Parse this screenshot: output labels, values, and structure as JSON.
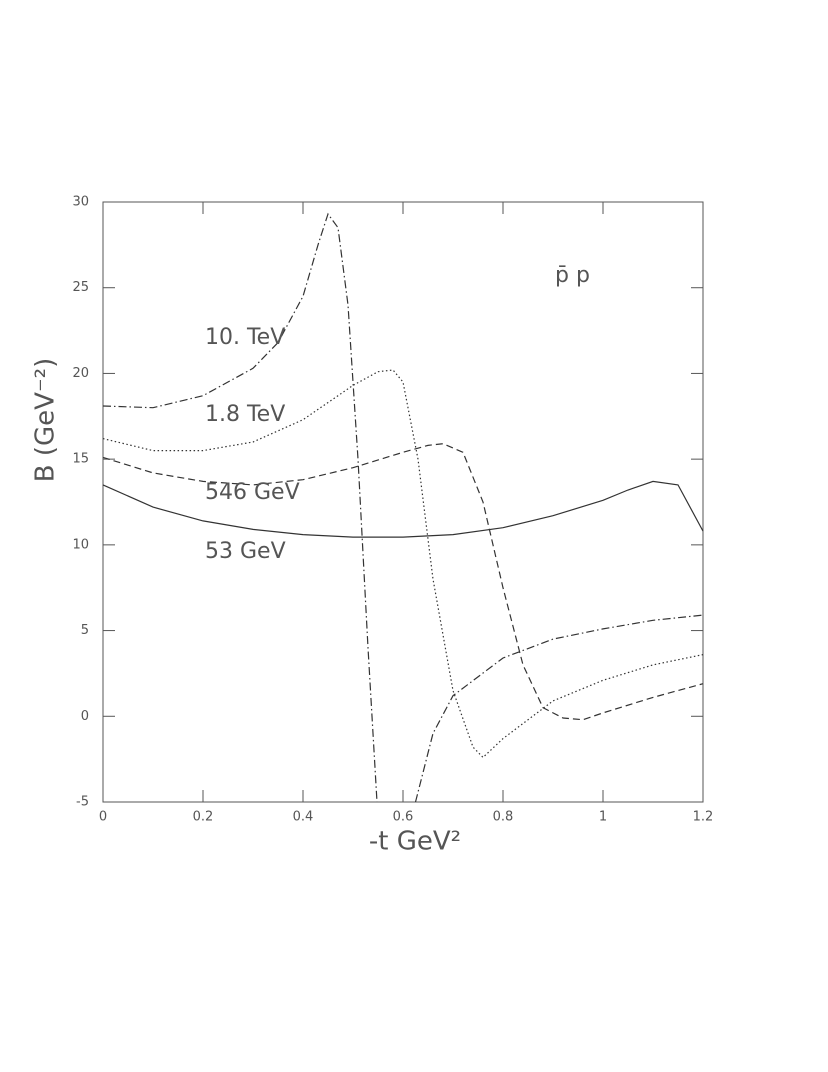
{
  "chart_data": {
    "type": "line",
    "xlabel": "-t  GeV²",
    "ylabel": "B (GeV⁻²)",
    "annotation": "p̄ p",
    "xlim": [
      0,
      1.2
    ],
    "ylim": [
      -5,
      30
    ],
    "xticks": [
      0,
      0.2,
      0.4,
      0.6,
      0.8,
      1,
      1.2
    ],
    "yticks": [
      -5,
      0,
      5,
      10,
      15,
      20,
      25,
      30
    ],
    "series": [
      {
        "name": "53 GeV",
        "color": "#333",
        "dash": "solid",
        "x": [
          0,
          0.1,
          0.2,
          0.3,
          0.4,
          0.5,
          0.6,
          0.7,
          0.8,
          0.9,
          1.0,
          1.05,
          1.1,
          1.15,
          1.2
        ],
        "values": [
          13.5,
          12.2,
          11.4,
          10.9,
          10.6,
          10.45,
          10.45,
          10.6,
          11.0,
          11.7,
          12.6,
          13.2,
          13.7,
          13.5,
          10.8
        ]
      },
      {
        "name": "546 GeV",
        "color": "#333",
        "dash": "dashed",
        "x": [
          0,
          0.1,
          0.2,
          0.3,
          0.4,
          0.5,
          0.6,
          0.65,
          0.68,
          0.72,
          0.76,
          0.8,
          0.84,
          0.88,
          0.92,
          0.96,
          1.0,
          1.1,
          1.2
        ],
        "values": [
          15.1,
          14.2,
          13.7,
          13.5,
          13.8,
          14.5,
          15.4,
          15.8,
          15.9,
          15.4,
          12.5,
          7.5,
          3.0,
          0.5,
          -0.1,
          -0.2,
          0.2,
          1.1,
          1.9
        ]
      },
      {
        "name": "1.8 TeV",
        "color": "#333",
        "dash": "dotted",
        "x": [
          0,
          0.1,
          0.2,
          0.3,
          0.4,
          0.5,
          0.55,
          0.58,
          0.6,
          0.63,
          0.66,
          0.7,
          0.74,
          0.76,
          0.8,
          0.9,
          1.0,
          1.1,
          1.2
        ],
        "values": [
          16.2,
          15.5,
          15.5,
          16.0,
          17.3,
          19.3,
          20.1,
          20.2,
          19.5,
          15,
          8,
          1.5,
          -1.8,
          -2.4,
          -1.3,
          0.9,
          2.1,
          3.0,
          3.6
        ]
      },
      {
        "name": "10. TeV",
        "color": "#333",
        "dash": "dashdot",
        "x": [
          0,
          0.1,
          0.2,
          0.3,
          0.35,
          0.4,
          0.43,
          0.45,
          0.47,
          0.49,
          0.51,
          0.53,
          0.548,
          0.59,
          0.625,
          0.66,
          0.7,
          0.8,
          0.9,
          1.0,
          1.1,
          1.2
        ],
        "values": [
          18.1,
          18.0,
          18.7,
          20.3,
          21.8,
          24.5,
          27.5,
          29.3,
          28.5,
          24,
          15,
          4,
          -5,
          null,
          -5,
          -1,
          1.2,
          3.4,
          4.5,
          5.1,
          5.6,
          5.9
        ]
      }
    ]
  }
}
